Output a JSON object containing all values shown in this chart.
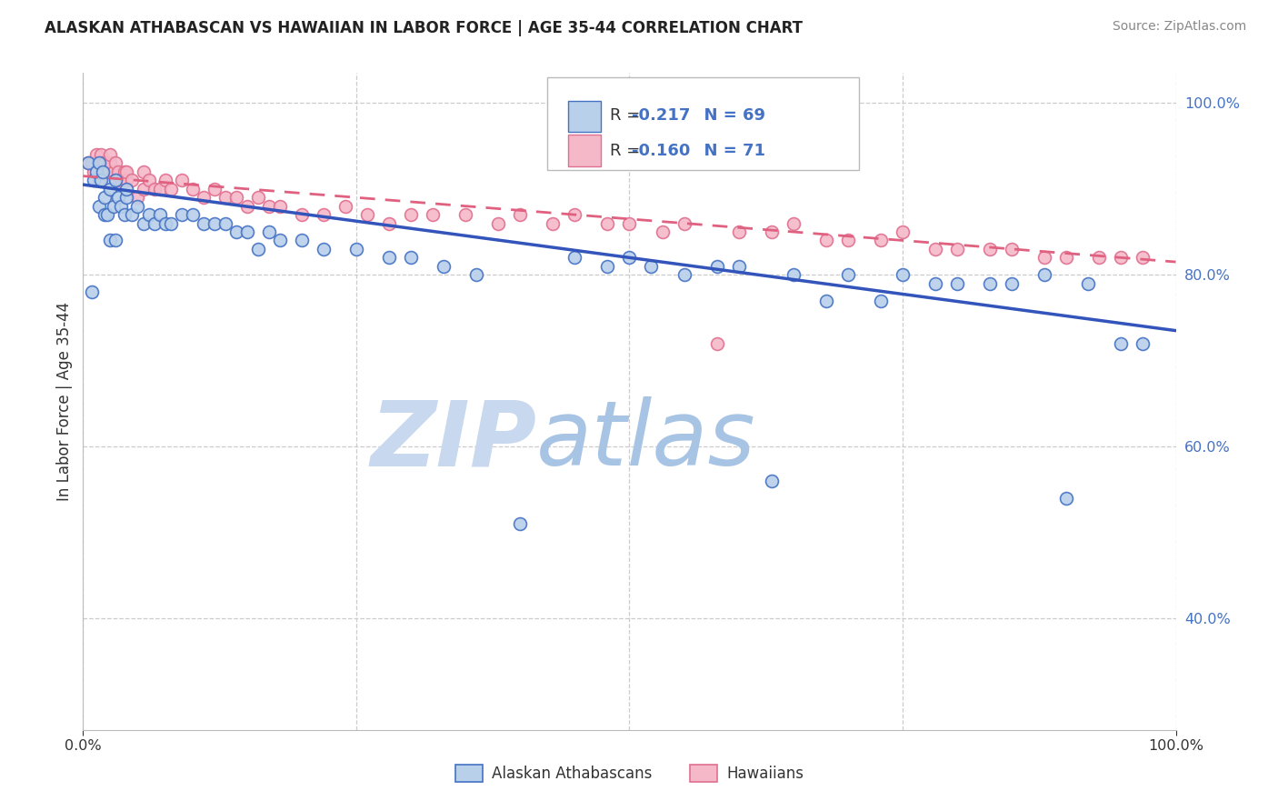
{
  "title": "ALASKAN ATHABASCAN VS HAWAIIAN IN LABOR FORCE | AGE 35-44 CORRELATION CHART",
  "source": "Source: ZipAtlas.com",
  "ylabel": "In Labor Force | Age 35-44",
  "R_blue": -0.217,
  "N_blue": 69,
  "R_pink": -0.16,
  "N_pink": 71,
  "blue_face": "#b8d0ea",
  "pink_face": "#f5b8c8",
  "blue_edge": "#4472c4",
  "pink_edge": "#e07090",
  "blue_line": "#3355bb",
  "pink_line": "#e06080",
  "watermark_zip_color": "#c8d8ee",
  "watermark_atlas_color": "#a8c4e4",
  "background": "#ffffff",
  "grid_color": "#cccccc",
  "title_color": "#222222",
  "source_color": "#888888",
  "ylabel_color": "#333333",
  "tick_color_right": "#4472c4",
  "tick_color_bottom": "#333333",
  "legend_text_color": "#4472c4",
  "legend_r_label_color": "#333333",
  "xlim": [
    0.0,
    1.0
  ],
  "ylim": [
    0.27,
    1.035
  ],
  "blue_x": [
    0.005,
    0.008,
    0.01,
    0.012,
    0.015,
    0.015,
    0.016,
    0.018,
    0.02,
    0.02,
    0.022,
    0.025,
    0.025,
    0.028,
    0.03,
    0.03,
    0.032,
    0.035,
    0.038,
    0.04,
    0.04,
    0.045,
    0.05,
    0.055,
    0.06,
    0.065,
    0.07,
    0.075,
    0.08,
    0.09,
    0.1,
    0.11,
    0.12,
    0.13,
    0.14,
    0.15,
    0.16,
    0.17,
    0.18,
    0.2,
    0.22,
    0.25,
    0.28,
    0.3,
    0.33,
    0.36,
    0.4,
    0.45,
    0.48,
    0.5,
    0.52,
    0.55,
    0.58,
    0.6,
    0.63,
    0.65,
    0.68,
    0.7,
    0.73,
    0.75,
    0.78,
    0.8,
    0.83,
    0.85,
    0.88,
    0.9,
    0.92,
    0.95,
    0.97
  ],
  "blue_y": [
    0.93,
    0.78,
    0.91,
    0.92,
    0.88,
    0.93,
    0.91,
    0.92,
    0.87,
    0.89,
    0.87,
    0.84,
    0.9,
    0.88,
    0.84,
    0.91,
    0.89,
    0.88,
    0.87,
    0.89,
    0.9,
    0.87,
    0.88,
    0.86,
    0.87,
    0.86,
    0.87,
    0.86,
    0.86,
    0.87,
    0.87,
    0.86,
    0.86,
    0.86,
    0.85,
    0.85,
    0.83,
    0.85,
    0.84,
    0.84,
    0.83,
    0.83,
    0.82,
    0.82,
    0.81,
    0.8,
    0.51,
    0.82,
    0.81,
    0.82,
    0.81,
    0.8,
    0.81,
    0.81,
    0.56,
    0.8,
    0.77,
    0.8,
    0.77,
    0.8,
    0.79,
    0.79,
    0.79,
    0.79,
    0.8,
    0.54,
    0.79,
    0.72,
    0.72
  ],
  "pink_x": [
    0.005,
    0.008,
    0.01,
    0.012,
    0.015,
    0.016,
    0.018,
    0.02,
    0.022,
    0.025,
    0.025,
    0.028,
    0.03,
    0.03,
    0.032,
    0.035,
    0.038,
    0.04,
    0.04,
    0.045,
    0.05,
    0.055,
    0.055,
    0.06,
    0.065,
    0.07,
    0.075,
    0.08,
    0.09,
    0.1,
    0.11,
    0.12,
    0.13,
    0.14,
    0.15,
    0.16,
    0.17,
    0.18,
    0.2,
    0.22,
    0.24,
    0.26,
    0.28,
    0.3,
    0.32,
    0.35,
    0.38,
    0.4,
    0.43,
    0.45,
    0.48,
    0.5,
    0.53,
    0.55,
    0.58,
    0.6,
    0.63,
    0.65,
    0.68,
    0.7,
    0.73,
    0.75,
    0.78,
    0.8,
    0.83,
    0.85,
    0.88,
    0.9,
    0.93,
    0.95,
    0.97
  ],
  "pink_y": [
    0.93,
    0.93,
    0.92,
    0.94,
    0.91,
    0.94,
    0.93,
    0.93,
    0.92,
    0.93,
    0.94,
    0.92,
    0.91,
    0.93,
    0.92,
    0.91,
    0.92,
    0.91,
    0.92,
    0.91,
    0.89,
    0.9,
    0.92,
    0.91,
    0.9,
    0.9,
    0.91,
    0.9,
    0.91,
    0.9,
    0.89,
    0.9,
    0.89,
    0.89,
    0.88,
    0.89,
    0.88,
    0.88,
    0.87,
    0.87,
    0.88,
    0.87,
    0.86,
    0.87,
    0.87,
    0.87,
    0.86,
    0.87,
    0.86,
    0.87,
    0.86,
    0.86,
    0.85,
    0.86,
    0.72,
    0.85,
    0.85,
    0.86,
    0.84,
    0.84,
    0.84,
    0.85,
    0.83,
    0.83,
    0.83,
    0.83,
    0.82,
    0.82,
    0.82,
    0.82,
    0.82
  ],
  "blue_line_x0": 0.0,
  "blue_line_y0": 0.905,
  "blue_line_x1": 1.0,
  "blue_line_y1": 0.735,
  "pink_line_x0": 0.0,
  "pink_line_y0": 0.915,
  "pink_line_x1": 1.0,
  "pink_line_y1": 0.815,
  "bottom_legend_labels": [
    "Alaskan Athabascans",
    "Hawaiians"
  ],
  "marker_size": 100,
  "marker_lw": 1.2
}
